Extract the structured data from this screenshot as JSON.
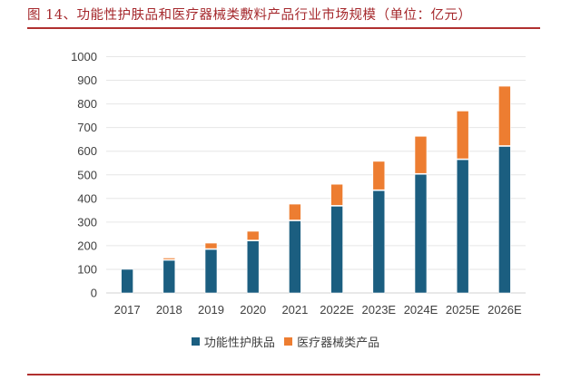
{
  "header": {
    "title": "图 14、功能性护肤品和医疗器械类敷料产品行业市场规模（单位：亿元）"
  },
  "colors": {
    "series_skincare": "#1B5E80",
    "series_medical": "#ED7D31",
    "title": "#A5282C"
  },
  "chart_data": {
    "type": "bar",
    "stacked": true,
    "title": "功能性护肤品和医疗器械类敷料产品行业市场规模（单位：亿元）",
    "xlabel": "",
    "ylabel": "",
    "categories": [
      "2017",
      "2018",
      "2019",
      "2020",
      "2021",
      "2022E",
      "2023E",
      "2024E",
      "2025E",
      "2026E"
    ],
    "series": [
      {
        "name": "功能性护肤品",
        "values": [
          100,
          138,
          184,
          220,
          305,
          367,
          433,
          502,
          564,
          620
        ]
      },
      {
        "name": "医疗器械类产品",
        "values": [
          0,
          10,
          27,
          41,
          71,
          93,
          124,
          161,
          206,
          255
        ]
      }
    ],
    "ylim": [
      0,
      1000
    ],
    "yticks": [
      "0",
      "100",
      "200",
      "300",
      "400",
      "500",
      "600",
      "700",
      "800",
      "900",
      "1000"
    ],
    "grid": true,
    "legend_position": "bottom-center"
  }
}
